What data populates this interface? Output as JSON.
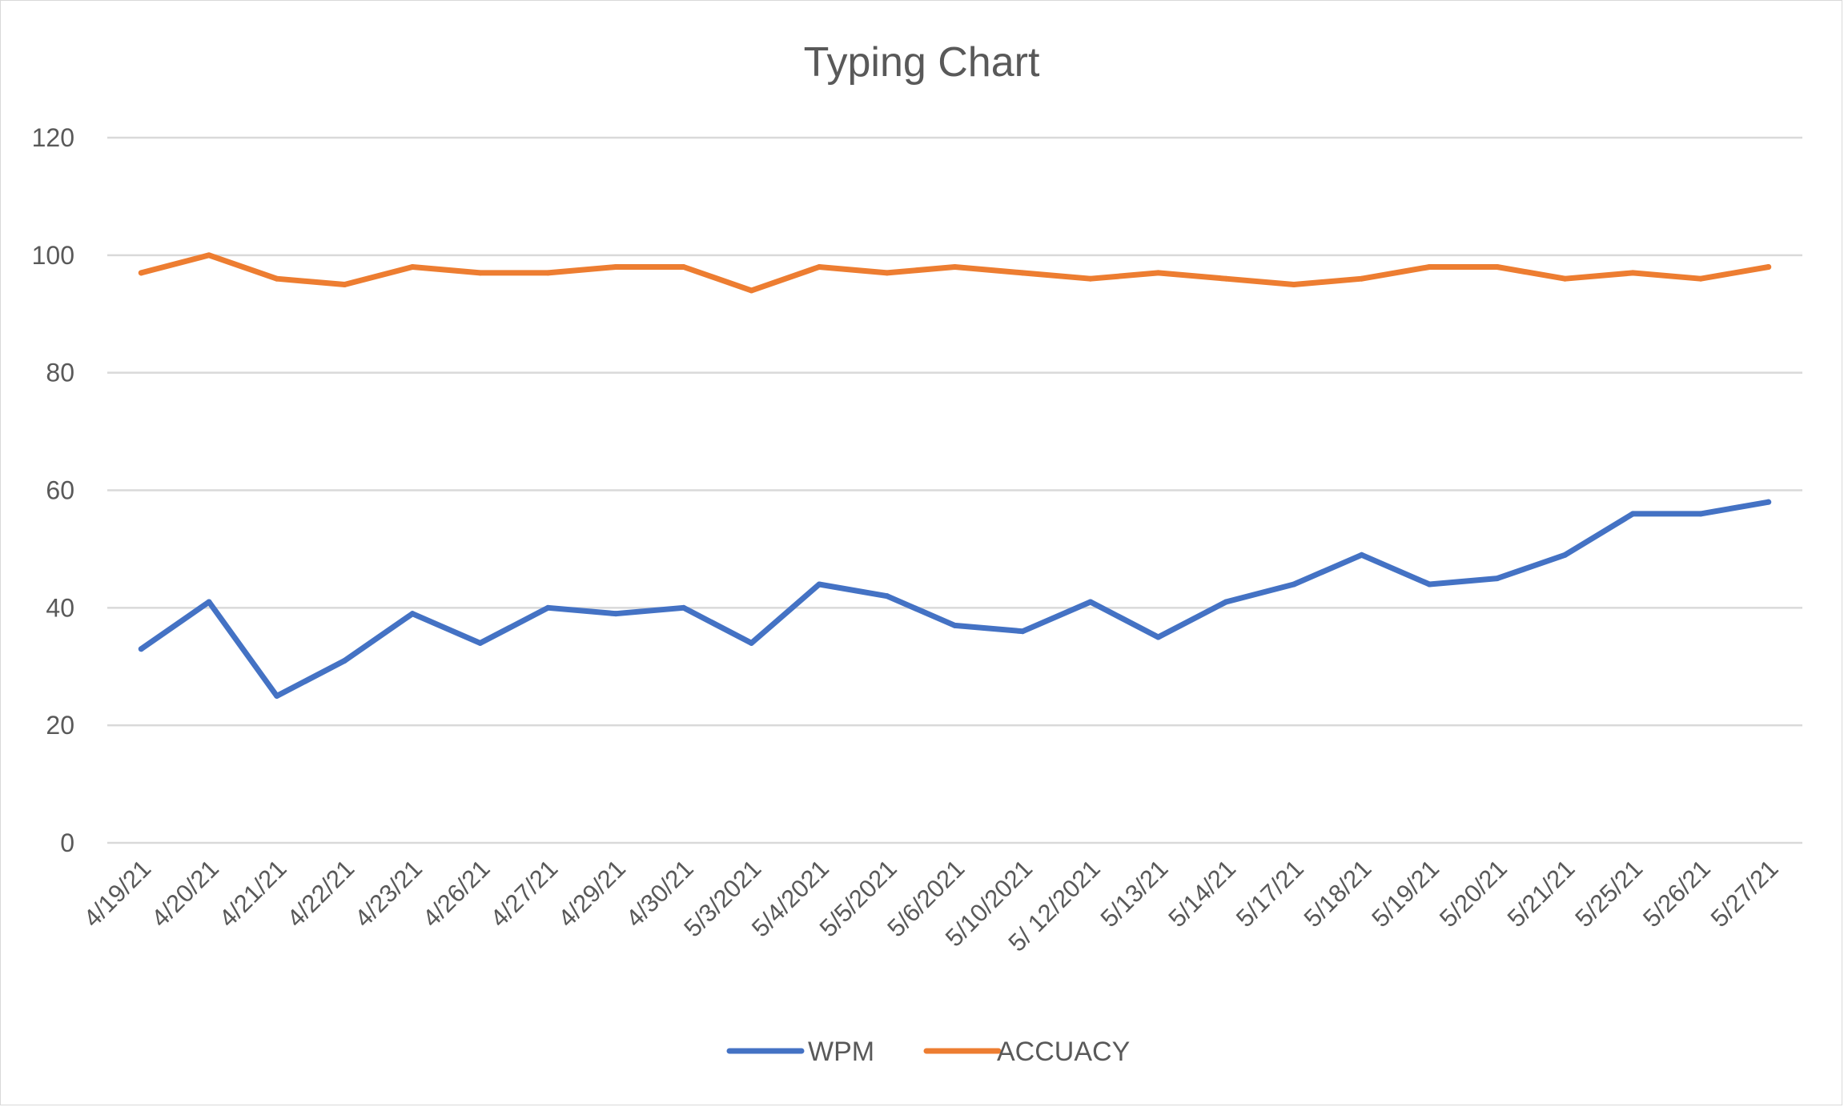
{
  "chart_data": {
    "type": "line",
    "title": "Typing Chart",
    "xlabel": "",
    "ylabel": "",
    "ylim": [
      0,
      120
    ],
    "yticks": [
      0,
      20,
      40,
      60,
      80,
      100,
      120
    ],
    "grid": true,
    "legend_position": "bottom",
    "categories": [
      "4/19/21",
      "4/20/21",
      "4/21/21",
      "4/22/21",
      "4/23/21",
      "4/26/21",
      "4/27/21",
      "4/29/21",
      "4/30/21",
      "5/3/2021",
      "5/4/2021",
      "5/5/2021",
      "5/6/2021",
      "5/10/2021",
      "5/ 12/2021",
      "5/13/21",
      "5/14/21",
      "5/17/21",
      "5/18/21",
      "5/19/21",
      "5/20/21",
      "5/21/21",
      "5/25/21",
      "5/26/21",
      "5/27/21"
    ],
    "series": [
      {
        "name": "WPM",
        "color": "#4472c4",
        "values": [
          33,
          41,
          25,
          31,
          39,
          34,
          40,
          39,
          40,
          34,
          44,
          42,
          37,
          36,
          41,
          35,
          41,
          44,
          49,
          44,
          45,
          49,
          56,
          56,
          58
        ]
      },
      {
        "name": "ACCUACY",
        "color": "#ed7d31",
        "values": [
          97,
          100,
          96,
          95,
          98,
          97,
          97,
          98,
          98,
          94,
          98,
          97,
          98,
          97,
          96,
          97,
          96,
          95,
          96,
          98,
          98,
          96,
          97,
          96,
          98
        ]
      }
    ]
  }
}
